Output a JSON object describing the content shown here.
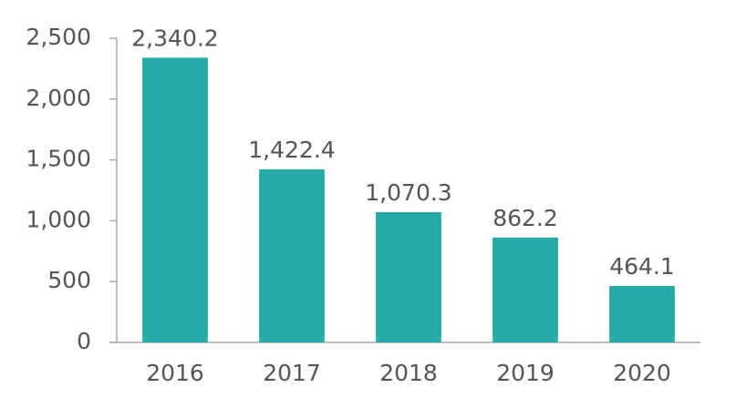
{
  "chart_data": {
    "type": "bar",
    "categories": [
      "2016",
      "2017",
      "2018",
      "2019",
      "2020"
    ],
    "values": [
      2340.2,
      1422.4,
      1070.3,
      862.2,
      464.1
    ],
    "value_labels": [
      "2,340.2",
      "1,422.4",
      "1,070.3",
      "862.2",
      "464.1"
    ],
    "color": "#27aaa5",
    "ylim": [
      0,
      2500
    ],
    "yticks": [
      0,
      500,
      {
        "value": 1000,
        "label": "1,000"
      },
      {
        "value": 1500,
        "label": "1,500"
      },
      {
        "value": 2000,
        "label": "2,000"
      },
      {
        "value": 2500,
        "label": "2,500"
      }
    ],
    "grid": false
  }
}
